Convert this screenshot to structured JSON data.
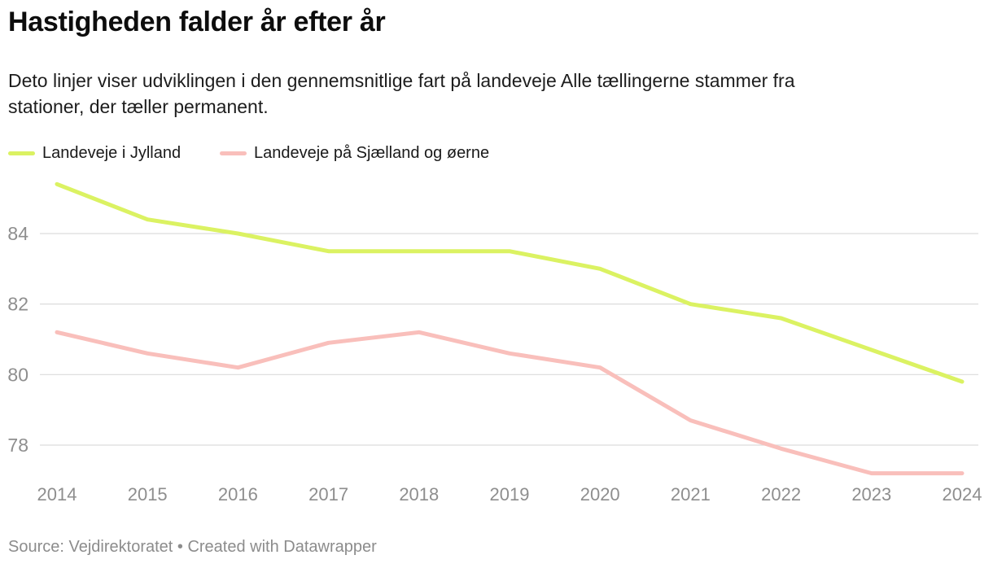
{
  "header": {
    "title": "Hastigheden falder år efter år",
    "subtitle_line1": "Deto linjer viser udviklingen i den gennemsnitlige fart på landeveje Alle tællingerne stammer fra",
    "subtitle_line2": "stationer, der tæller permanent."
  },
  "legend": {
    "items": [
      {
        "label": "Landeveje i Jylland",
        "color": "#dbf262"
      },
      {
        "label": "Landeveje på Sjælland og øerne",
        "color": "#f9bfbb"
      }
    ]
  },
  "footer": {
    "source": "Source: Vejdirektoratet • Created with Datawrapper"
  },
  "colors": {
    "jylland_line": "#dbf262",
    "sjaelland_line": "#f9bfbb",
    "gridline": "#dcdcdc",
    "tick_label": "#8e8e8e"
  },
  "chart_data": {
    "type": "line",
    "title": "Hastigheden falder år efter år",
    "xlabel": "",
    "ylabel": "",
    "x": [
      2014,
      2015,
      2016,
      2017,
      2018,
      2019,
      2020,
      2021,
      2022,
      2023,
      2024
    ],
    "series": [
      {
        "name": "Landeveje i Jylland",
        "color": "#dbf262",
        "values": [
          85.4,
          84.4,
          84.0,
          83.5,
          83.5,
          83.5,
          83.0,
          82.0,
          81.6,
          80.7,
          79.8
        ]
      },
      {
        "name": "Landeveje på Sjælland og øerne",
        "color": "#f9bfbb",
        "values": [
          81.2,
          80.6,
          80.2,
          80.9,
          81.2,
          80.6,
          80.2,
          78.7,
          77.9,
          77.2,
          77.2
        ]
      }
    ],
    "yticks": [
      84,
      82,
      80,
      78
    ],
    "ylim": [
      77.0,
      85.7
    ],
    "grid": true,
    "legend_position": "top"
  }
}
